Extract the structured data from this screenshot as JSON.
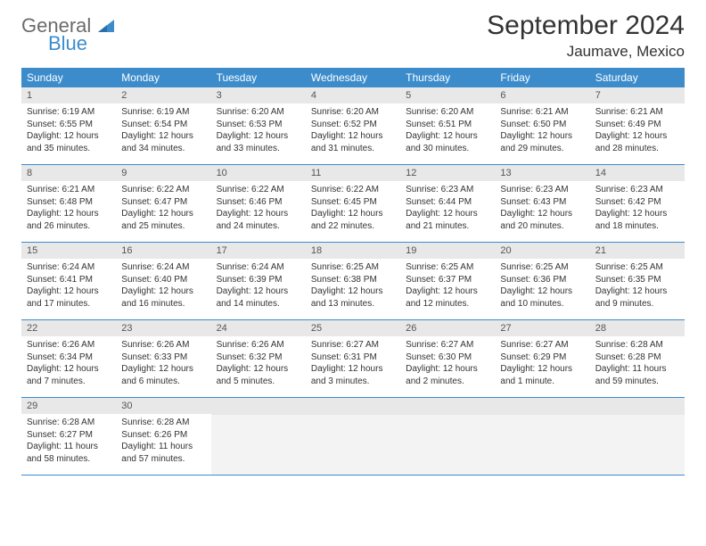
{
  "logo": {
    "general": "General",
    "blue": "Blue"
  },
  "title": "September 2024",
  "location": "Jaumave, Mexico",
  "colors": {
    "header_blue": "#3c8ccc",
    "logo_gray": "#6c6c6c",
    "daynum_bg": "#e8e8e8",
    "empty_bg": "#f3f3f3",
    "text": "#333333"
  },
  "days_of_week": [
    "Sunday",
    "Monday",
    "Tuesday",
    "Wednesday",
    "Thursday",
    "Friday",
    "Saturday"
  ],
  "weeks": [
    [
      {
        "n": "1",
        "sunrise": "Sunrise: 6:19 AM",
        "sunset": "Sunset: 6:55 PM",
        "day": "Daylight: 12 hours and 35 minutes."
      },
      {
        "n": "2",
        "sunrise": "Sunrise: 6:19 AM",
        "sunset": "Sunset: 6:54 PM",
        "day": "Daylight: 12 hours and 34 minutes."
      },
      {
        "n": "3",
        "sunrise": "Sunrise: 6:20 AM",
        "sunset": "Sunset: 6:53 PM",
        "day": "Daylight: 12 hours and 33 minutes."
      },
      {
        "n": "4",
        "sunrise": "Sunrise: 6:20 AM",
        "sunset": "Sunset: 6:52 PM",
        "day": "Daylight: 12 hours and 31 minutes."
      },
      {
        "n": "5",
        "sunrise": "Sunrise: 6:20 AM",
        "sunset": "Sunset: 6:51 PM",
        "day": "Daylight: 12 hours and 30 minutes."
      },
      {
        "n": "6",
        "sunrise": "Sunrise: 6:21 AM",
        "sunset": "Sunset: 6:50 PM",
        "day": "Daylight: 12 hours and 29 minutes."
      },
      {
        "n": "7",
        "sunrise": "Sunrise: 6:21 AM",
        "sunset": "Sunset: 6:49 PM",
        "day": "Daylight: 12 hours and 28 minutes."
      }
    ],
    [
      {
        "n": "8",
        "sunrise": "Sunrise: 6:21 AM",
        "sunset": "Sunset: 6:48 PM",
        "day": "Daylight: 12 hours and 26 minutes."
      },
      {
        "n": "9",
        "sunrise": "Sunrise: 6:22 AM",
        "sunset": "Sunset: 6:47 PM",
        "day": "Daylight: 12 hours and 25 minutes."
      },
      {
        "n": "10",
        "sunrise": "Sunrise: 6:22 AM",
        "sunset": "Sunset: 6:46 PM",
        "day": "Daylight: 12 hours and 24 minutes."
      },
      {
        "n": "11",
        "sunrise": "Sunrise: 6:22 AM",
        "sunset": "Sunset: 6:45 PM",
        "day": "Daylight: 12 hours and 22 minutes."
      },
      {
        "n": "12",
        "sunrise": "Sunrise: 6:23 AM",
        "sunset": "Sunset: 6:44 PM",
        "day": "Daylight: 12 hours and 21 minutes."
      },
      {
        "n": "13",
        "sunrise": "Sunrise: 6:23 AM",
        "sunset": "Sunset: 6:43 PM",
        "day": "Daylight: 12 hours and 20 minutes."
      },
      {
        "n": "14",
        "sunrise": "Sunrise: 6:23 AM",
        "sunset": "Sunset: 6:42 PM",
        "day": "Daylight: 12 hours and 18 minutes."
      }
    ],
    [
      {
        "n": "15",
        "sunrise": "Sunrise: 6:24 AM",
        "sunset": "Sunset: 6:41 PM",
        "day": "Daylight: 12 hours and 17 minutes."
      },
      {
        "n": "16",
        "sunrise": "Sunrise: 6:24 AM",
        "sunset": "Sunset: 6:40 PM",
        "day": "Daylight: 12 hours and 16 minutes."
      },
      {
        "n": "17",
        "sunrise": "Sunrise: 6:24 AM",
        "sunset": "Sunset: 6:39 PM",
        "day": "Daylight: 12 hours and 14 minutes."
      },
      {
        "n": "18",
        "sunrise": "Sunrise: 6:25 AM",
        "sunset": "Sunset: 6:38 PM",
        "day": "Daylight: 12 hours and 13 minutes."
      },
      {
        "n": "19",
        "sunrise": "Sunrise: 6:25 AM",
        "sunset": "Sunset: 6:37 PM",
        "day": "Daylight: 12 hours and 12 minutes."
      },
      {
        "n": "20",
        "sunrise": "Sunrise: 6:25 AM",
        "sunset": "Sunset: 6:36 PM",
        "day": "Daylight: 12 hours and 10 minutes."
      },
      {
        "n": "21",
        "sunrise": "Sunrise: 6:25 AM",
        "sunset": "Sunset: 6:35 PM",
        "day": "Daylight: 12 hours and 9 minutes."
      }
    ],
    [
      {
        "n": "22",
        "sunrise": "Sunrise: 6:26 AM",
        "sunset": "Sunset: 6:34 PM",
        "day": "Daylight: 12 hours and 7 minutes."
      },
      {
        "n": "23",
        "sunrise": "Sunrise: 6:26 AM",
        "sunset": "Sunset: 6:33 PM",
        "day": "Daylight: 12 hours and 6 minutes."
      },
      {
        "n": "24",
        "sunrise": "Sunrise: 6:26 AM",
        "sunset": "Sunset: 6:32 PM",
        "day": "Daylight: 12 hours and 5 minutes."
      },
      {
        "n": "25",
        "sunrise": "Sunrise: 6:27 AM",
        "sunset": "Sunset: 6:31 PM",
        "day": "Daylight: 12 hours and 3 minutes."
      },
      {
        "n": "26",
        "sunrise": "Sunrise: 6:27 AM",
        "sunset": "Sunset: 6:30 PM",
        "day": "Daylight: 12 hours and 2 minutes."
      },
      {
        "n": "27",
        "sunrise": "Sunrise: 6:27 AM",
        "sunset": "Sunset: 6:29 PM",
        "day": "Daylight: 12 hours and 1 minute."
      },
      {
        "n": "28",
        "sunrise": "Sunrise: 6:28 AM",
        "sunset": "Sunset: 6:28 PM",
        "day": "Daylight: 11 hours and 59 minutes."
      }
    ],
    [
      {
        "n": "29",
        "sunrise": "Sunrise: 6:28 AM",
        "sunset": "Sunset: 6:27 PM",
        "day": "Daylight: 11 hours and 58 minutes."
      },
      {
        "n": "30",
        "sunrise": "Sunrise: 6:28 AM",
        "sunset": "Sunset: 6:26 PM",
        "day": "Daylight: 11 hours and 57 minutes."
      },
      null,
      null,
      null,
      null,
      null
    ]
  ]
}
